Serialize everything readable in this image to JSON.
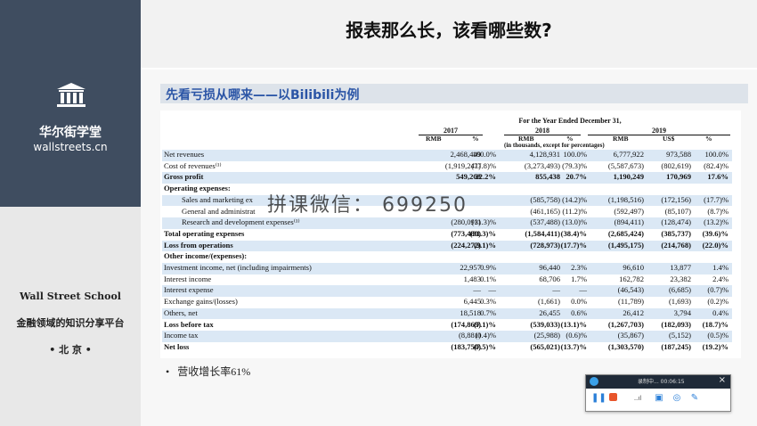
{
  "slide": {
    "title": "报表那么长，该看哪些数?",
    "section_title": "先看亏损从哪来——以Bilibili为例",
    "bullet": "营收增长率61%"
  },
  "sidebar": {
    "brand_cn": "华尔街学堂",
    "brand_url": "wallstreets.cn",
    "school_en": "Wall Street School",
    "slogan": "金融领域的知识分享平台",
    "city": "• 北 京 •",
    "logo_icon": "building-columns-icon"
  },
  "watermark": "拼课微信： 699250",
  "table": {
    "period_header": "For the Year Ended December 31,",
    "years": [
      "2017",
      "2018",
      "2019"
    ],
    "col_headers": [
      "RMB",
      "%",
      "RMB",
      "%",
      "RMB",
      "US$",
      "%"
    ],
    "unit_note": "(in thousands, except for percentages)",
    "rows": [
      {
        "label": "Net revenues",
        "values": [
          "2,468,449",
          "100.0%",
          "4,128,931",
          "100.0%",
          "6,777,922",
          "973,588",
          "100.0%"
        ],
        "bold": false,
        "indent": false,
        "shade": true
      },
      {
        "label": "Cost of revenues⁽¹⁾",
        "values": [
          "(1,919,241)",
          "(77.8)%",
          "(3,273,493)",
          "(79.3)%",
          "(5,587,673)",
          "(802,619)",
          "(82.4)%"
        ],
        "bold": false,
        "indent": false,
        "shade": false
      },
      {
        "label": "Gross profit",
        "values": [
          "549,208",
          "22.2%",
          "855,438",
          "20.7%",
          "1,190,249",
          "170,969",
          "17.6%"
        ],
        "bold": true,
        "indent": false,
        "shade": true
      },
      {
        "label": "Operating expenses:",
        "values": [
          "",
          "",
          "",
          "",
          "",
          "",
          ""
        ],
        "bold": true,
        "indent": false,
        "shade": false
      },
      {
        "label": "Sales and marketing ex",
        "values": [
          "",
          "",
          "(585,758)",
          "(14.2)%",
          "(1,198,516)",
          "(172,156)",
          "(17.7)%"
        ],
        "bold": false,
        "indent": true,
        "shade": true
      },
      {
        "label": "General and administrat",
        "values": [
          "",
          "",
          "(461,165)",
          "(11.2)%",
          "(592,497)",
          "(85,107)",
          "(8.7)%"
        ],
        "bold": false,
        "indent": true,
        "shade": false
      },
      {
        "label": "Research and development expenses⁽¹⁾",
        "values": [
          "(280,093)",
          "(11.3)%",
          "(537,488)",
          "(13.0)%",
          "(894,411)",
          "(128,474)",
          "(13.2)%"
        ],
        "bold": false,
        "indent": true,
        "shade": true
      },
      {
        "label": "Total operating expenses",
        "values": [
          "(773,480)",
          "(31.3)%",
          "(1,584,411)",
          "(38.4)%",
          "(2,685,424)",
          "(385,737)",
          "(39.6)%"
        ],
        "bold": true,
        "indent": false,
        "shade": false
      },
      {
        "label": "Loss from operations",
        "values": [
          "(224,272)",
          "(9.1)%",
          "(728,973)",
          "(17.7)%",
          "(1,495,175)",
          "(214,768)",
          "(22.0)%"
        ],
        "bold": true,
        "indent": false,
        "shade": true
      },
      {
        "label": "Other income/(expenses):",
        "values": [
          "",
          "",
          "",
          "",
          "",
          "",
          ""
        ],
        "bold": true,
        "indent": false,
        "shade": false
      },
      {
        "label": "Investment income, net (including impairments)",
        "values": [
          "22,957",
          "0.9%",
          "96,440",
          "2.3%",
          "96,610",
          "13,877",
          "1.4%"
        ],
        "bold": false,
        "indent": false,
        "shade": true
      },
      {
        "label": "Interest income",
        "values": [
          "1,483",
          "0.1%",
          "68,706",
          "1.7%",
          "162,782",
          "23,382",
          "2.4%"
        ],
        "bold": false,
        "indent": false,
        "shade": false
      },
      {
        "label": "Interest expense",
        "values": [
          "—",
          "—",
          "—",
          "—",
          "(46,543)",
          "(6,685)",
          "(0.7)%"
        ],
        "bold": false,
        "indent": false,
        "shade": true
      },
      {
        "label": "Exchange gains/(losses)",
        "values": [
          "6,445",
          "0.3%",
          "(1,661)",
          "0.0%",
          "(11,789)",
          "(1,693)",
          "(0.2)%"
        ],
        "bold": false,
        "indent": false,
        "shade": false
      },
      {
        "label": "Others, net",
        "values": [
          "18,518",
          "0.7%",
          "26,455",
          "0.6%",
          "26,412",
          "3,794",
          "0.4%"
        ],
        "bold": false,
        "indent": false,
        "shade": true
      },
      {
        "label": "Loss before tax",
        "values": [
          "(174,869)",
          "(7.1)%",
          "(539,033)",
          "(13.1)%",
          "(1,267,703)",
          "(182,093)",
          "(18.7)%"
        ],
        "bold": true,
        "indent": false,
        "shade": false
      },
      {
        "label": "Income tax",
        "values": [
          "(8,881)",
          "(0.4)%",
          "(25,988)",
          "(0.6)%",
          "(35,867)",
          "(5,152)",
          "(0.5)%"
        ],
        "bold": false,
        "indent": false,
        "shade": true
      },
      {
        "label": "Net loss",
        "values": [
          "(183,750)",
          "(7.5)%",
          "(565,021)",
          "(13.7)%",
          "(1,303,570)",
          "(187,245)",
          "(19.2)%"
        ],
        "bold": true,
        "indent": false,
        "shade": false
      }
    ]
  },
  "recorder": {
    "title": "录制中... 00:06:15",
    "close_icon": "close-icon",
    "controls": [
      "pause-icon",
      "stop-icon",
      "mic-level-icon",
      "camera-icon",
      "screenshot-icon",
      "pen-icon"
    ]
  }
}
